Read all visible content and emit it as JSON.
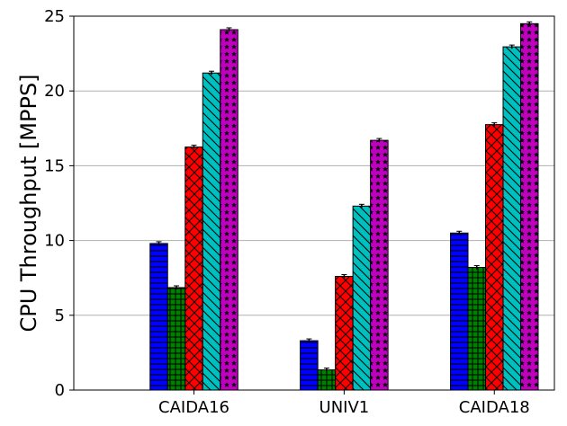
{
  "chart_data": {
    "type": "bar",
    "title": "",
    "xlabel": "",
    "ylabel": "CPU Throughput [MPPS]",
    "ylim": [
      0,
      25
    ],
    "yticks": [
      0,
      5,
      10,
      15,
      20,
      25
    ],
    "grid": "horizontal",
    "categories": [
      "CAIDA16",
      "UNIV1",
      "CAIDA18"
    ],
    "series": [
      {
        "color": "#0000ff",
        "hatch": "horizontal",
        "values": [
          9.8,
          3.3,
          10.5
        ]
      },
      {
        "color": "#008000",
        "hatch": "grid",
        "values": [
          6.85,
          1.35,
          8.2
        ]
      },
      {
        "color": "#ff0000",
        "hatch": "cross-diagonal",
        "values": [
          16.25,
          7.6,
          17.75
        ]
      },
      {
        "color": "#00bfbf",
        "hatch": "backslash",
        "values": [
          21.2,
          12.3,
          22.95
        ]
      },
      {
        "color": "#bf00bf",
        "hatch": "stars",
        "values": [
          24.1,
          16.7,
          24.5
        ]
      }
    ]
  }
}
